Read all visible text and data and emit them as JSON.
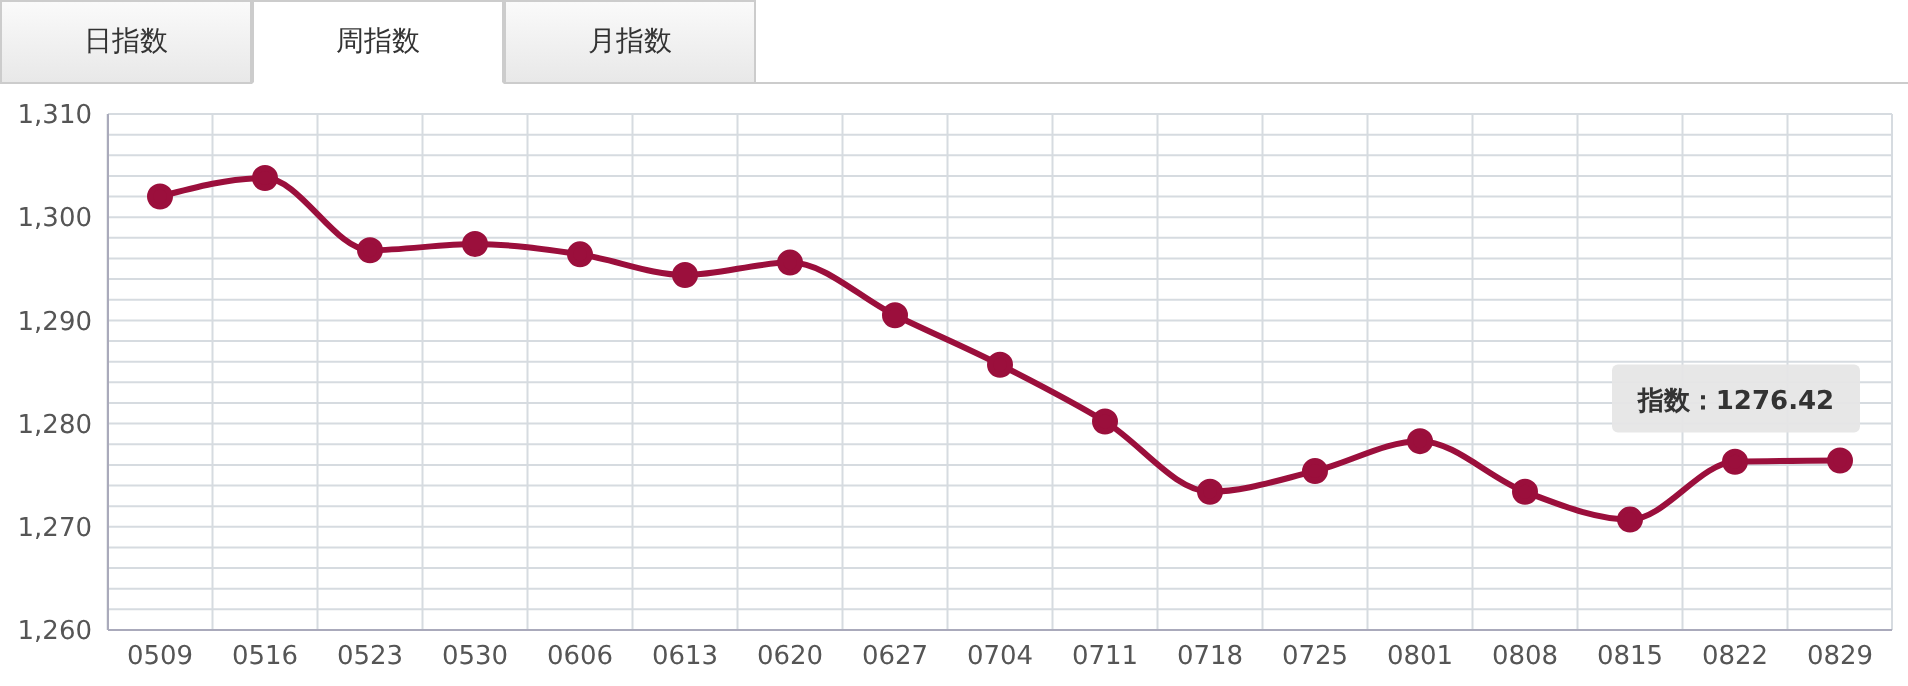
{
  "chart_data": {
    "type": "line",
    "categories": [
      "0509",
      "0516",
      "0523",
      "0530",
      "0606",
      "0613",
      "0620",
      "0627",
      "0704",
      "0711",
      "0718",
      "0725",
      "0801",
      "0808",
      "0815",
      "0822",
      "0829"
    ],
    "series": [
      {
        "color": "#9b0f3c",
        "values": [
          1302.0,
          1303.8,
          1296.8,
          1297.4,
          1296.4,
          1294.4,
          1295.6,
          1290.5,
          1285.7,
          1280.2,
          1273.4,
          1275.4,
          1278.3,
          1273.4,
          1270.7,
          1276.3,
          1276.42
        ]
      }
    ],
    "ylim": [
      1260,
      1310
    ],
    "yticks": [
      {
        "value": 1260,
        "label": "1,260"
      },
      {
        "value": 1262,
        "label": null
      },
      {
        "value": 1264,
        "label": null
      },
      {
        "value": 1266,
        "label": null
      },
      {
        "value": 1268,
        "label": null
      },
      {
        "value": 1270,
        "label": "1,270"
      },
      {
        "value": 1272,
        "label": null
      },
      {
        "value": 1274,
        "label": null
      },
      {
        "value": 1276,
        "label": null
      },
      {
        "value": 1278,
        "label": null
      },
      {
        "value": 1280,
        "label": "1,280"
      },
      {
        "value": 1282,
        "label": null
      },
      {
        "value": 1284,
        "label": null
      },
      {
        "value": 1286,
        "label": null
      },
      {
        "value": 1288,
        "label": null
      },
      {
        "value": 1290,
        "label": "1,290"
      },
      {
        "value": 1292,
        "label": null
      },
      {
        "value": 1294,
        "label": null
      },
      {
        "value": 1296,
        "label": null
      },
      {
        "value": 1298,
        "label": null
      },
      {
        "value": 1300,
        "label": "1,300"
      },
      {
        "value": 1302,
        "label": null
      },
      {
        "value": 1304,
        "label": null
      },
      {
        "value": 1306,
        "label": null
      },
      {
        "value": 1308,
        "label": null
      },
      {
        "value": 1310,
        "label": "1,310"
      }
    ],
    "grid": true,
    "legend": false,
    "marker": "circle",
    "line_style": "solid",
    "annotations": [
      "日指数",
      "周指数",
      "月指数",
      {
        "text": "指数：1276.42",
        "x": "0829",
        "y": 1276.42
      }
    ]
  }
}
